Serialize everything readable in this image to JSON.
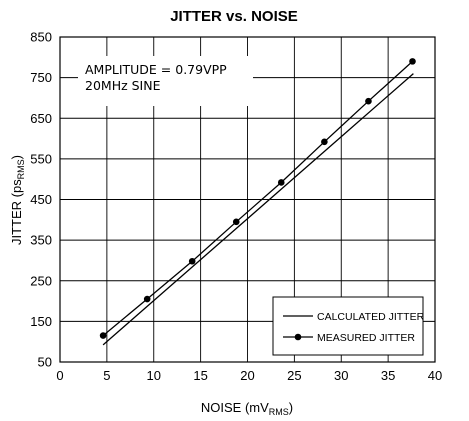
{
  "chart_data": {
    "type": "line",
    "title": "JITTER vs. NOISE",
    "xlabel": {
      "main": "NOISE (mV",
      "sub": "RMS",
      "close": ")"
    },
    "ylabel": {
      "main": "JITTER (ps",
      "sub": "RMS",
      "close": ")"
    },
    "xlim": [
      0,
      40
    ],
    "ylim": [
      50,
      850
    ],
    "xticks": [
      0,
      5,
      10,
      15,
      20,
      25,
      30,
      35,
      40
    ],
    "yticks": [
      50,
      150,
      250,
      350,
      450,
      550,
      650,
      750,
      850
    ],
    "grid": true,
    "legend": "bottom-right",
    "annotation": [
      "AMPLITUDE = 0.79VPP",
      "20MHz SINE"
    ],
    "series": [
      {
        "name": "CALCULATED JITTER",
        "style": "line",
        "x": [
          4.6,
          37.7
        ],
        "y": [
          92,
          760
        ]
      },
      {
        "name": "MEASURED JITTER",
        "style": "line-marker",
        "x": [
          4.6,
          9.3,
          14.1,
          18.8,
          23.6,
          28.2,
          32.9,
          37.6
        ],
        "y": [
          115,
          205,
          298,
          395,
          492,
          592,
          692,
          790
        ]
      }
    ]
  }
}
